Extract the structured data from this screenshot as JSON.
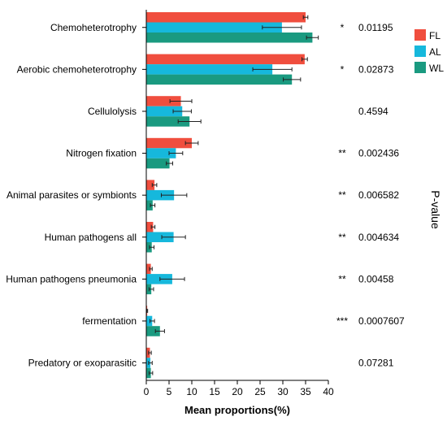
{
  "chart_data": {
    "type": "bar",
    "orientation": "horizontal",
    "xlabel": "Mean proportions(%)",
    "right_label": "P-value",
    "xlim": [
      0,
      40
    ],
    "xticks": [
      0,
      5,
      10,
      15,
      20,
      25,
      30,
      35,
      40
    ],
    "grid": false,
    "legend_position": "top-right",
    "categories": [
      "Chemoheterotrophy",
      "Aerobic chemoheterotrophy",
      "Cellulolysis",
      "Nitrogen fixation",
      "Animal parasites or symbionts",
      "Human pathogens all",
      "Human pathogens pneumonia",
      "fermentation",
      "Predatory or exoparasitic"
    ],
    "series": [
      {
        "name": "FL",
        "color": "#f04e3e",
        "values": [
          35.0,
          34.8,
          7.6,
          10.0,
          1.8,
          1.5,
          1.0,
          0.2,
          0.8
        ],
        "errors": [
          0.5,
          0.6,
          2.4,
          1.4,
          0.5,
          0.4,
          0.3,
          0.1,
          0.3
        ]
      },
      {
        "name": "AL",
        "color": "#16b8dc",
        "values": [
          29.8,
          27.7,
          7.9,
          6.5,
          6.1,
          6.0,
          5.7,
          1.3,
          0.9
        ],
        "errors": [
          4.3,
          4.3,
          2.0,
          1.5,
          2.8,
          2.6,
          2.7,
          0.5,
          0.4
        ]
      },
      {
        "name": "WL",
        "color": "#1a9a80",
        "values": [
          36.5,
          32.0,
          9.5,
          5.1,
          1.4,
          1.2,
          1.1,
          3.0,
          1.0
        ],
        "errors": [
          1.3,
          1.9,
          2.5,
          0.7,
          0.5,
          0.5,
          0.5,
          1.0,
          0.4
        ]
      }
    ],
    "significance": [
      "*",
      "*",
      "",
      "**",
      "**",
      "**",
      "**",
      "***",
      ""
    ],
    "p_values": [
      "0.01195",
      "0.02873",
      "0.4594",
      "0.002436",
      "0.006582",
      "0.004634",
      "0.00458",
      "0.0007607",
      "0.07281"
    ]
  }
}
